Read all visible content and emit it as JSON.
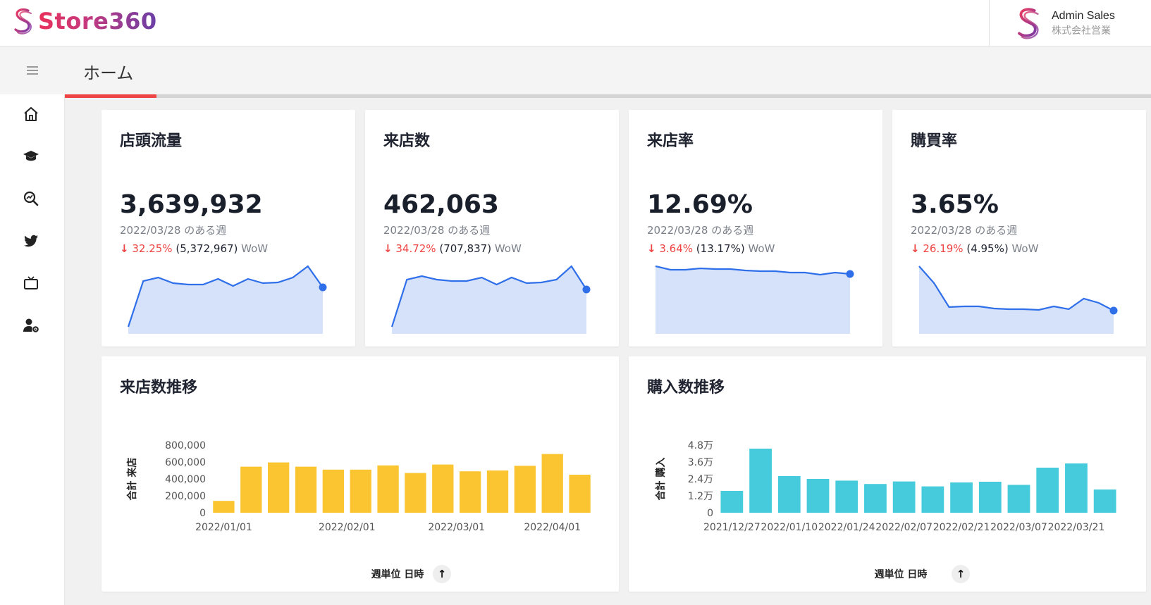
{
  "app": {
    "logo_text": "Store360",
    "user_name": "Admin Sales",
    "user_company": "株式会社営業"
  },
  "page": {
    "title": "ホーム"
  },
  "nav": {
    "items": [
      {
        "name": "home",
        "icon": "home-icon"
      },
      {
        "name": "learning",
        "icon": "graduation-cap-icon"
      },
      {
        "name": "search-analysis",
        "icon": "search-chart-icon"
      },
      {
        "name": "twitter",
        "icon": "twitter-icon"
      },
      {
        "name": "tv",
        "icon": "tv-icon"
      },
      {
        "name": "user-settings",
        "icon": "user-gear-icon"
      }
    ]
  },
  "colors": {
    "accent": "#ef4444",
    "line": "#2f6fea",
    "area": "#d6e2f9",
    "bar_visits": "#fbc531",
    "bar_purchases": "#45cbdb"
  },
  "kpis": [
    {
      "title": "店頭流量",
      "value": "3,639,932",
      "period": "2022/03/28 のある週",
      "change_pct": "32.25%",
      "change_abs": "(5,372,967)",
      "change_label": "WoW",
      "chart_data": {
        "type": "area",
        "values": [
          0.1,
          0.75,
          0.8,
          0.72,
          0.7,
          0.7,
          0.78,
          0.68,
          0.78,
          0.72,
          0.73,
          0.8,
          0.96,
          0.66
        ]
      }
    },
    {
      "title": "来店数",
      "value": "462,063",
      "period": "2022/03/28 のある週",
      "change_pct": "34.72%",
      "change_abs": "(707,837)",
      "change_label": "WoW",
      "chart_data": {
        "type": "area",
        "values": [
          0.1,
          0.77,
          0.82,
          0.77,
          0.75,
          0.75,
          0.8,
          0.7,
          0.8,
          0.72,
          0.73,
          0.77,
          0.96,
          0.63
        ]
      }
    },
    {
      "title": "来店率",
      "value": "12.69%",
      "period": "2022/03/28 のある週",
      "change_pct": "3.64%",
      "change_abs": "(13.17%)",
      "change_label": "WoW",
      "chart_data": {
        "type": "area",
        "values": [
          0.96,
          0.91,
          0.91,
          0.93,
          0.92,
          0.92,
          0.9,
          0.89,
          0.89,
          0.87,
          0.87,
          0.84,
          0.87,
          0.85
        ]
      }
    },
    {
      "title": "購買率",
      "value": "3.65%",
      "period": "2022/03/28 のある週",
      "change_pct": "26.19%",
      "change_abs": "(4.95%)",
      "change_label": "WoW",
      "chart_data": {
        "type": "area",
        "values": [
          0.96,
          0.72,
          0.38,
          0.39,
          0.39,
          0.36,
          0.35,
          0.35,
          0.34,
          0.39,
          0.35,
          0.5,
          0.44,
          0.33
        ]
      }
    }
  ],
  "charts": {
    "visits": {
      "title": "来店数推移",
      "xlabel": "週単位 日時",
      "ylabel": "合計 来店",
      "sort_icon": "arrow-up-icon",
      "chart_data": {
        "type": "bar",
        "ylim": [
          0,
          800000
        ],
        "y_ticks": [
          "800,000",
          "600,000",
          "400,000",
          "200,000",
          "0"
        ],
        "x_ticks": [
          "2022/01/01",
          "2022/02/01",
          "2022/03/01",
          "2022/04/01"
        ],
        "x_tick_positions": [
          0.5,
          5,
          9,
          12.5
        ],
        "values": [
          140000,
          545000,
          595000,
          545000,
          510000,
          510000,
          560000,
          470000,
          570000,
          490000,
          500000,
          555000,
          695000,
          450000
        ]
      }
    },
    "purchases": {
      "title": "購入数推移",
      "xlabel": "週単位 日時",
      "ylabel": "合計 購入",
      "sort_icon": "arrow-up-icon",
      "chart_data": {
        "type": "bar",
        "ylim": [
          0,
          48000
        ],
        "y_ticks": [
          "4.8万",
          "3.6万",
          "2.4万",
          "1.2万",
          "0"
        ],
        "x_ticks": [
          "2021/12/27",
          "2022/01/10",
          "2022/01/24",
          "2022/02/07",
          "2022/02/21",
          "2022/03/07",
          "2022/03/21"
        ],
        "x_tick_positions": [
          0.5,
          2.5,
          4.5,
          6.5,
          8.5,
          10.5,
          12.5
        ],
        "values": [
          15500,
          45500,
          26000,
          24000,
          22800,
          20400,
          22200,
          18700,
          21500,
          22000,
          19800,
          32000,
          35000,
          16500
        ]
      }
    }
  }
}
